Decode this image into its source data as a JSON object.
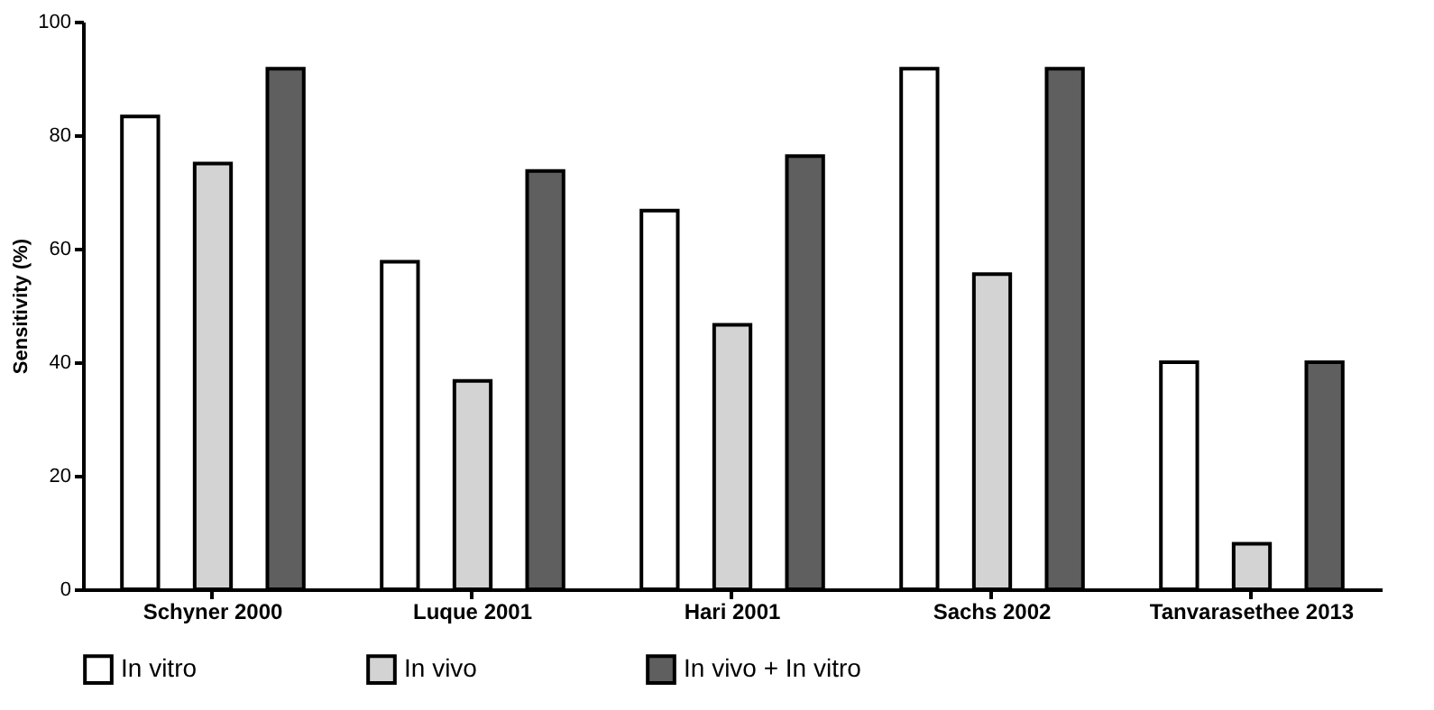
{
  "chart_data": {
    "type": "bar",
    "ylabel": "Sensitivity (%)",
    "categories": [
      "Schyner 2000",
      "Luque 2001",
      "Hari 2001",
      "Sachs 2002",
      "Tanvarasethee 2013"
    ],
    "series": [
      {
        "name": "In vitro",
        "color": "#ffffff",
        "values": [
          83.3,
          57.7,
          66.7,
          91.7,
          40
        ]
      },
      {
        "name": "In vivo",
        "color": "#d3d3d3",
        "values": [
          75,
          36.7,
          46.6,
          55.5,
          8
        ]
      },
      {
        "name": "In vivo + In vitro",
        "color": "#5f5f5f",
        "values": [
          91.7,
          73.7,
          76.3,
          91.7,
          40
        ]
      }
    ],
    "ylim": [
      0,
      100
    ],
    "yticks": [
      0,
      20,
      40,
      60,
      80,
      100
    ],
    "grid": false,
    "legend": "bottom"
  }
}
